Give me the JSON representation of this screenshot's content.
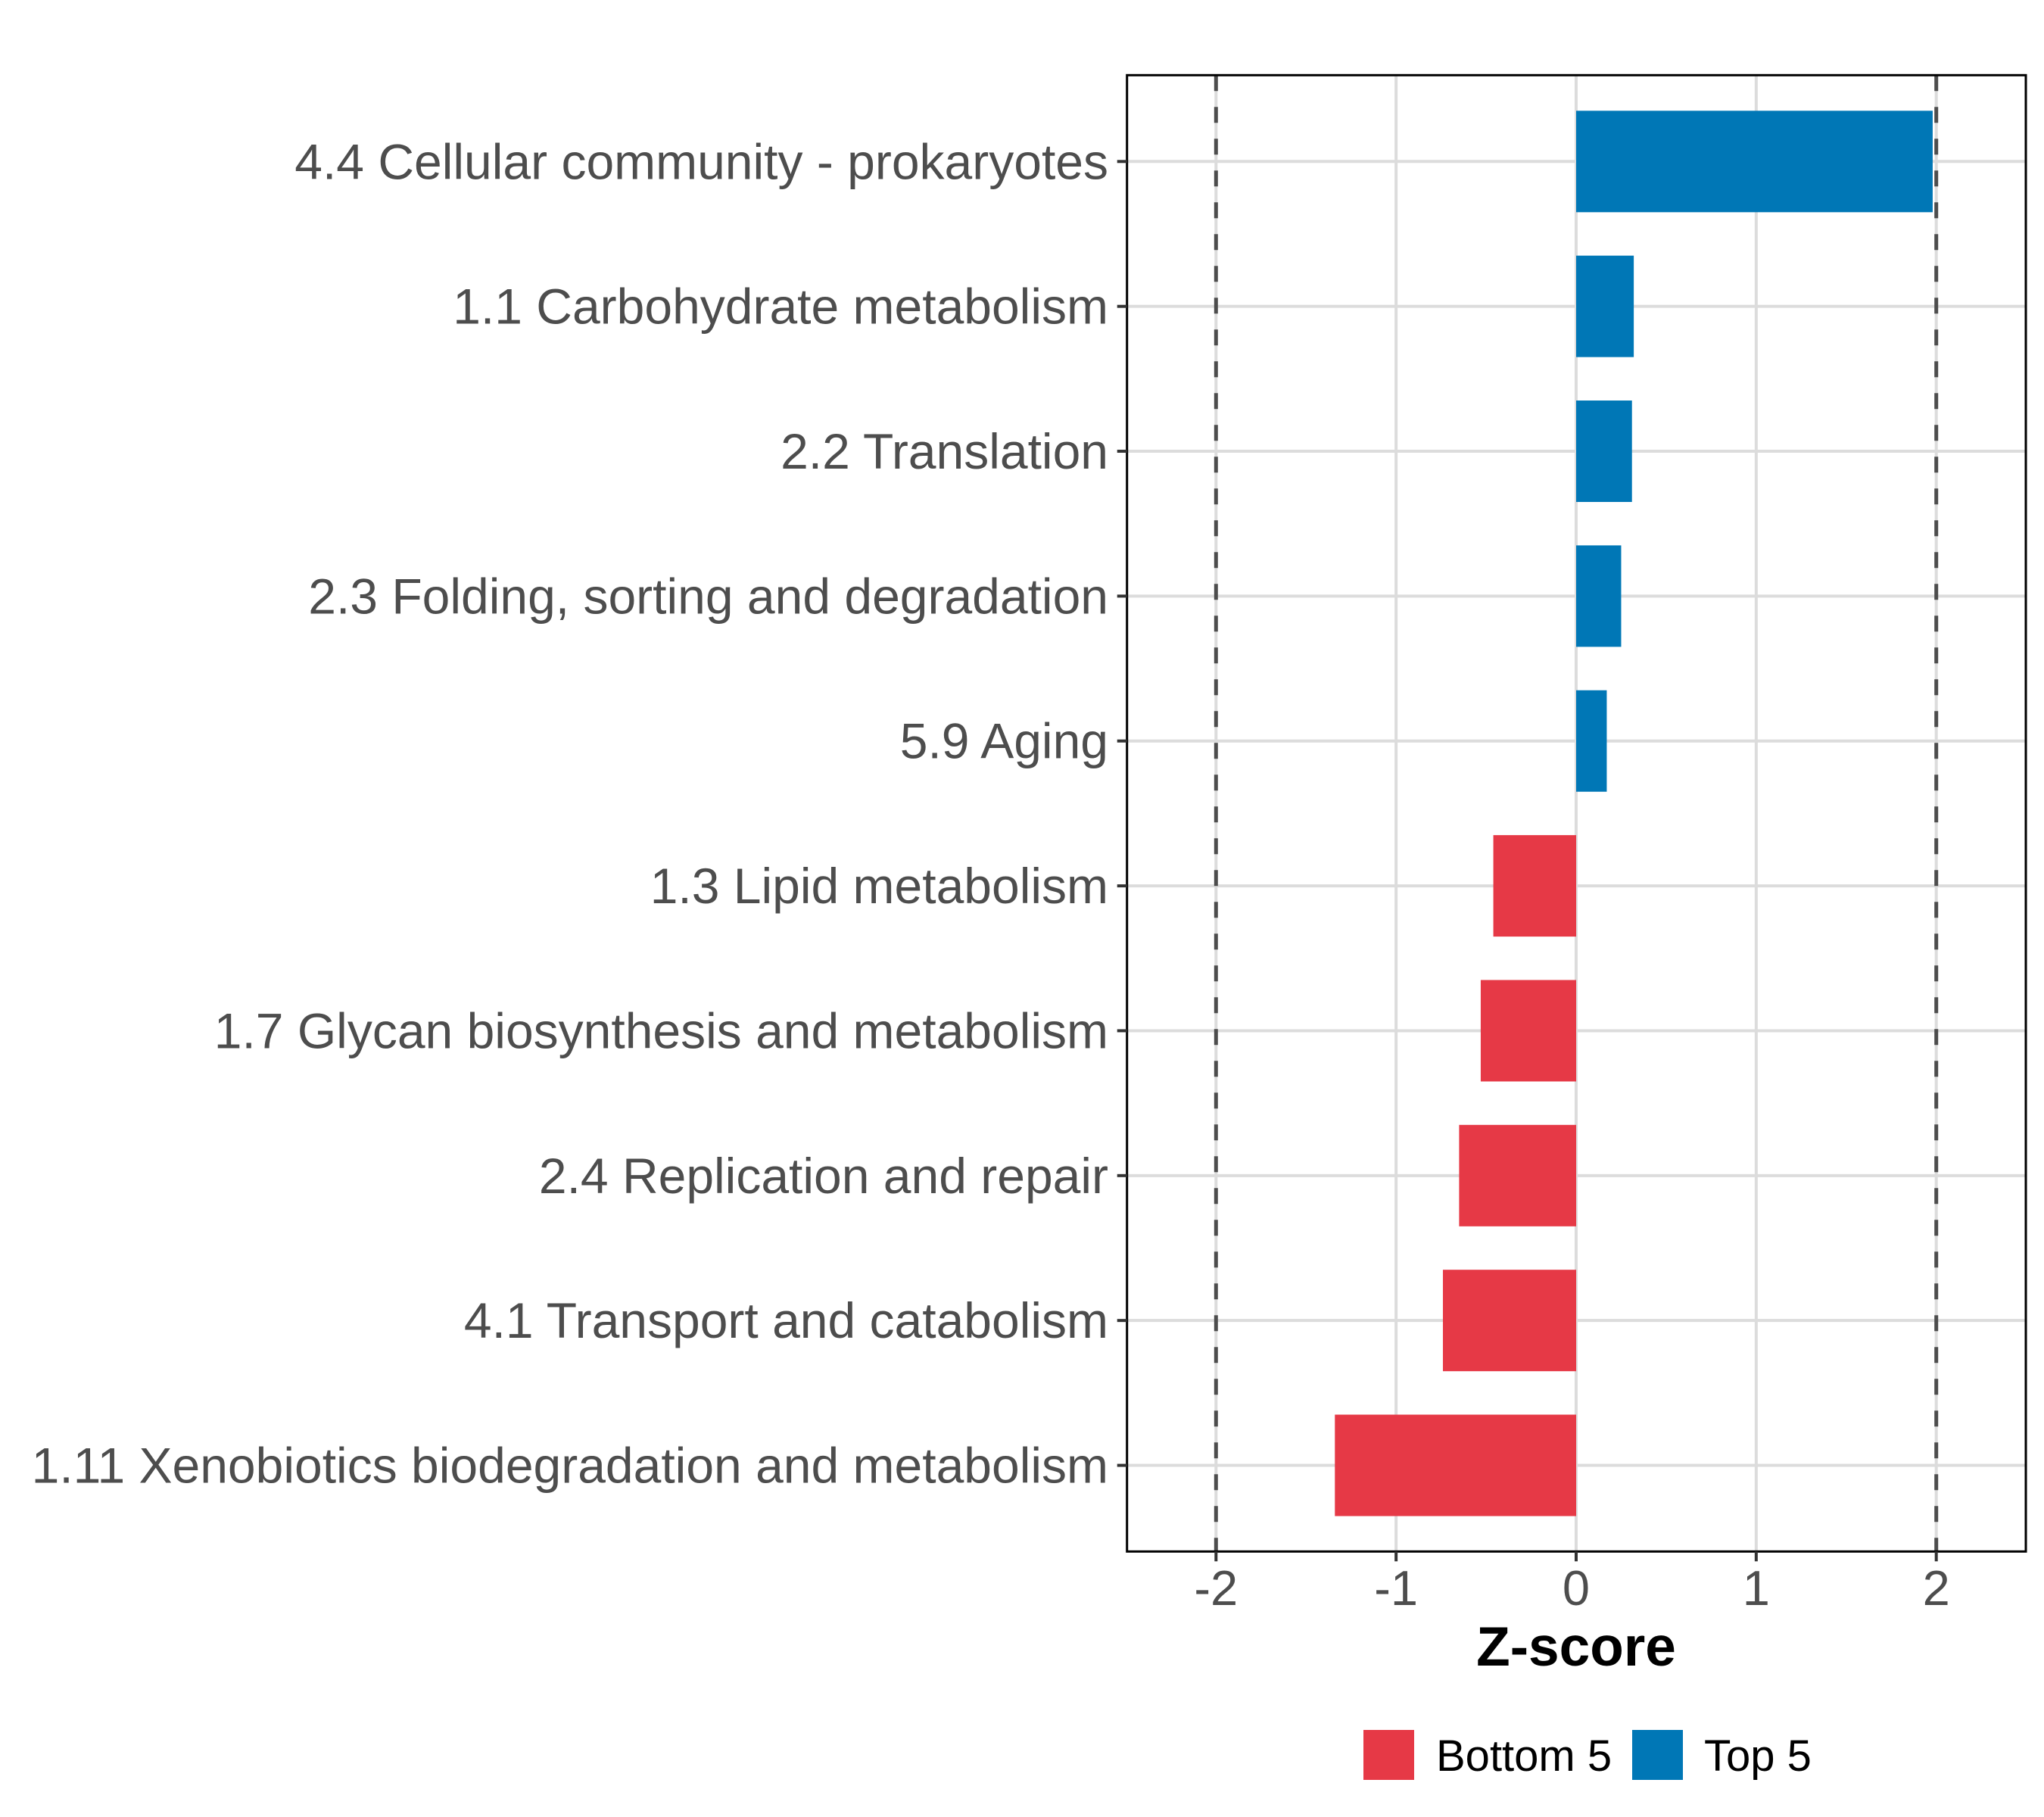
{
  "chart_data": {
    "type": "bar",
    "orientation": "horizontal",
    "title": "",
    "xlabel": "Z-score",
    "ylabel": "",
    "xlim": [
      -2.5,
      2.5
    ],
    "xticks": [
      -2,
      -1,
      0,
      1,
      2
    ],
    "xtick_labels": [
      "-2",
      "-1",
      "0",
      "1",
      "2"
    ],
    "reference_lines": [
      -2,
      2
    ],
    "grid": true,
    "categories": [
      "4.4 Cellular community - prokaryotes",
      "1.1 Carbohydrate metabolism",
      "2.2 Translation",
      "2.3 Folding, sorting and degradation",
      "5.9 Aging",
      "1.3 Lipid metabolism",
      "1.7 Glycan biosynthesis and metabolism",
      "2.4 Replication and repair",
      "4.1 Transport and catabolism",
      "1.11 Xenobiotics biodegradation and metabolism"
    ],
    "values": [
      1.98,
      0.32,
      0.31,
      0.25,
      0.17,
      -0.46,
      -0.53,
      -0.65,
      -0.74,
      -1.34
    ],
    "groups": [
      "Top 5",
      "Top 5",
      "Top 5",
      "Top 5",
      "Top 5",
      "Bottom 5",
      "Bottom 5",
      "Bottom 5",
      "Bottom 5",
      "Bottom 5"
    ],
    "legend": {
      "position": "bottom",
      "entries": [
        {
          "label": "Bottom 5",
          "color": "#e63946"
        },
        {
          "label": "Top 5",
          "color": "#0077b6"
        }
      ]
    },
    "colors": {
      "Bottom 5": "#e63946",
      "Top 5": "#0077b6"
    }
  }
}
